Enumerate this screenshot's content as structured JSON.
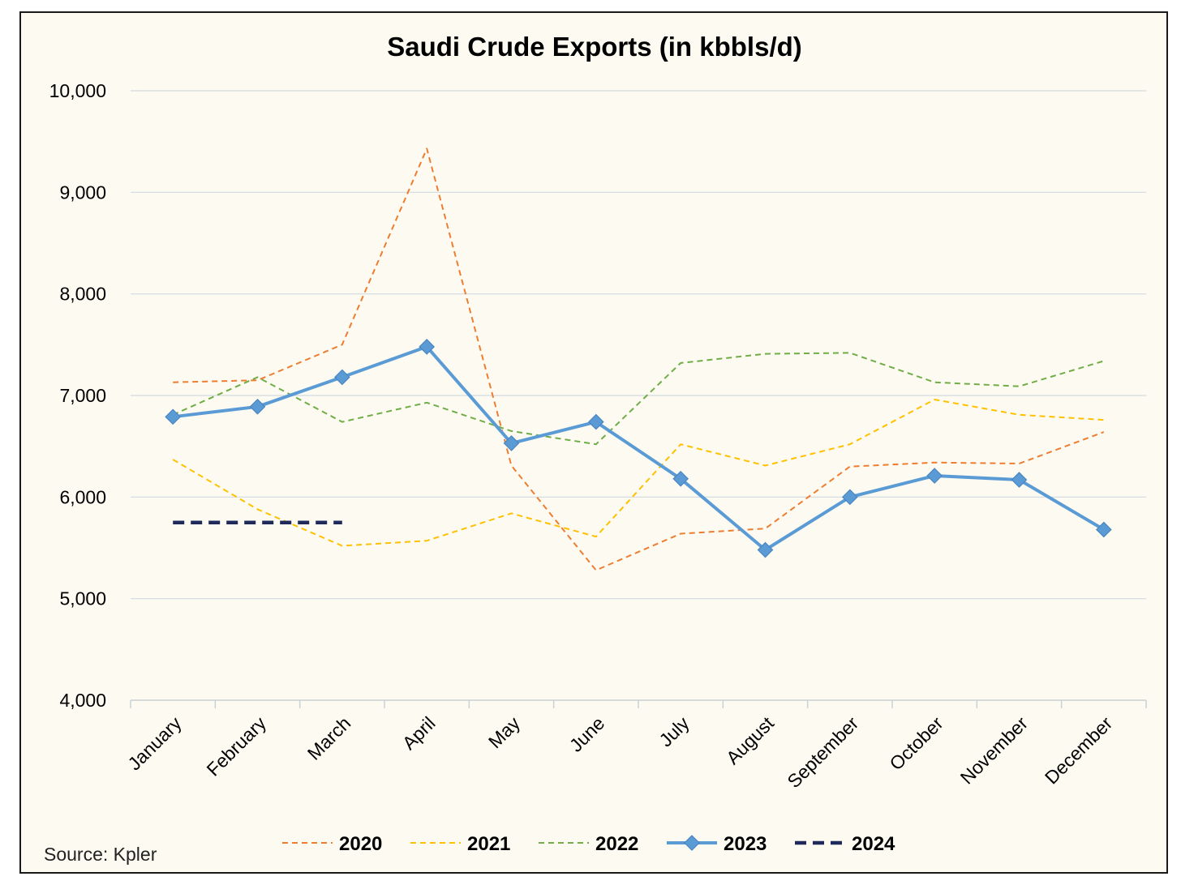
{
  "chart_data": {
    "type": "line",
    "title": "Saudi Crude Exports (in kbbls/d)",
    "xlabel": "",
    "ylabel": "",
    "ylim": [
      4000,
      10000
    ],
    "yticks": [
      4000,
      5000,
      6000,
      7000,
      8000,
      9000,
      10000
    ],
    "ytick_labels": [
      "4,000",
      "5,000",
      "6,000",
      "7,000",
      "8,000",
      "9,000",
      "10,000"
    ],
    "grid": true,
    "legend_position": "bottom",
    "categories": [
      "January",
      "February",
      "March",
      "April",
      "May",
      "June",
      "July",
      "August",
      "September",
      "October",
      "November",
      "December"
    ],
    "series": [
      {
        "name": "2020",
        "color": "#ed7d31",
        "style": "dashed-thin",
        "values": [
          7130,
          7150,
          7500,
          9430,
          6310,
          5280,
          5640,
          5690,
          6300,
          6340,
          6330,
          6640
        ]
      },
      {
        "name": "2021",
        "color": "#ffc000",
        "style": "dashed-thin",
        "values": [
          6370,
          5880,
          5520,
          5570,
          5840,
          5610,
          6520,
          6310,
          6520,
          6960,
          6810,
          6760
        ]
      },
      {
        "name": "2022",
        "color": "#70ad47",
        "style": "dashed-thin",
        "values": [
          6810,
          7180,
          6740,
          6930,
          6650,
          6520,
          7320,
          7410,
          7420,
          7130,
          7090,
          7340
        ]
      },
      {
        "name": "2023",
        "color": "#5b9bd5",
        "style": "solid-thick-diamond",
        "values": [
          6790,
          6890,
          7180,
          7480,
          6530,
          6740,
          6180,
          5480,
          6000,
          6210,
          6170,
          5680
        ]
      },
      {
        "name": "2024",
        "color": "#1f2a5a",
        "style": "dashed-thick",
        "values": [
          5750,
          5750,
          5750,
          null,
          null,
          null,
          null,
          null,
          null,
          null,
          null,
          null
        ]
      }
    ],
    "source": "Source: Kpler"
  }
}
